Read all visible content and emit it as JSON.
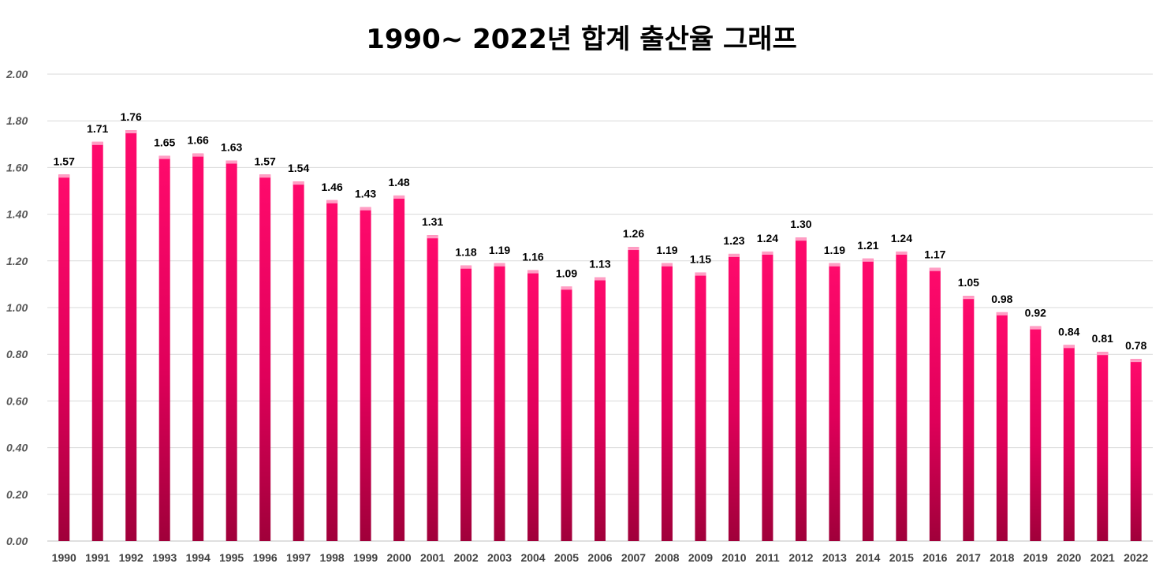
{
  "chart_data": {
    "type": "bar",
    "title": "1990~ 2022년 합계 출산율 그래프",
    "xlabel": "",
    "ylabel": "",
    "ylim": [
      0,
      2
    ],
    "yticks": [
      "0.00",
      "0.20",
      "0.40",
      "0.60",
      "0.80",
      "1.00",
      "1.20",
      "1.40",
      "1.60",
      "1.80",
      "2.00"
    ],
    "grid": true,
    "legend": "none",
    "colors": {
      "bar_top": "#ff0a6c",
      "bar_bottom": "#a0003a",
      "bar_cap": "#ff9ec4"
    },
    "categories": [
      "1990",
      "1991",
      "1992",
      "1993",
      "1994",
      "1995",
      "1996",
      "1997",
      "1998",
      "1999",
      "2000",
      "2001",
      "2002",
      "2003",
      "2004",
      "2005",
      "2006",
      "2007",
      "2008",
      "2009",
      "2010",
      "2011",
      "2012",
      "2013",
      "2014",
      "2015",
      "2016",
      "2017",
      "2018",
      "2019",
      "2020",
      "2021",
      "2022"
    ],
    "values": [
      1.57,
      1.71,
      1.76,
      1.65,
      1.66,
      1.63,
      1.57,
      1.54,
      1.46,
      1.43,
      1.48,
      1.31,
      1.18,
      1.19,
      1.16,
      1.09,
      1.13,
      1.26,
      1.19,
      1.15,
      1.23,
      1.24,
      1.3,
      1.19,
      1.21,
      1.24,
      1.17,
      1.05,
      0.98,
      0.92,
      0.84,
      0.81,
      0.78
    ],
    "labels": [
      "1.57",
      "1.71",
      "1.76",
      "1.65",
      "1.66",
      "1.63",
      "1.57",
      "1.54",
      "1.46",
      "1.43",
      "1.48",
      "1.31",
      "1.18",
      "1.19",
      "1.16",
      "1.09",
      "1.13",
      "1.26",
      "1.19",
      "1.15",
      "1.23",
      "1.24",
      "1.30",
      "1.19",
      "1.21",
      "1.24",
      "1.17",
      "1.05",
      "0.98",
      "0.92",
      "0.84",
      "0.81",
      "0.78"
    ]
  }
}
